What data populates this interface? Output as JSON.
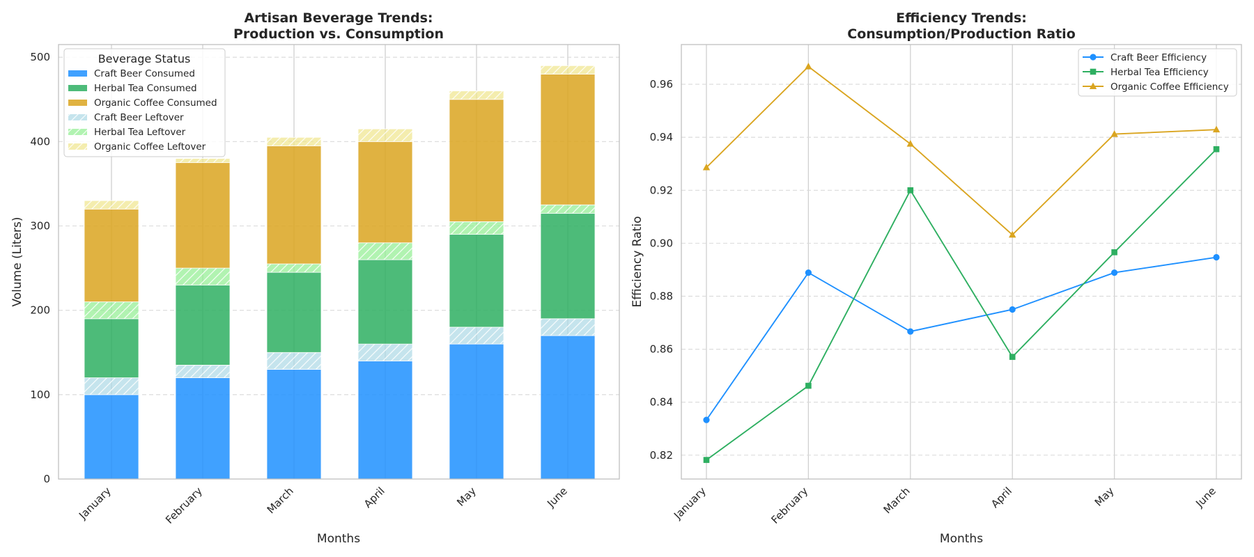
{
  "chart_data": [
    {
      "type": "bar",
      "title": "Artisan Beverage Trends:",
      "subtitle": "Production vs. Consumption",
      "xlabel": "Months",
      "ylabel": "Volume (Liters)",
      "categories": [
        "January",
        "February",
        "March",
        "April",
        "May",
        "June"
      ],
      "ylim": [
        0,
        515
      ],
      "yticks": [
        0,
        100,
        200,
        300,
        400,
        500
      ],
      "stacked": true,
      "grid": true,
      "legend": {
        "title": "Beverage Status",
        "position": "top-left"
      },
      "series": [
        {
          "name": "Craft Beer Consumed",
          "kind": "consumed",
          "color": "#1E90FF",
          "values": [
            100,
            120,
            130,
            140,
            160,
            170
          ]
        },
        {
          "name": "Craft Beer Leftover",
          "kind": "leftover",
          "color": "#ADD8E6",
          "values": [
            20,
            15,
            20,
            20,
            20,
            20
          ]
        },
        {
          "name": "Herbal Tea Consumed",
          "kind": "consumed",
          "color": "#2EAF61",
          "values": [
            70,
            95,
            95,
            100,
            110,
            125
          ]
        },
        {
          "name": "Herbal Tea Leftover",
          "kind": "leftover",
          "color": "#90EE90",
          "values": [
            20,
            20,
            10,
            20,
            15,
            10
          ]
        },
        {
          "name": "Organic Coffee Consumed",
          "kind": "consumed",
          "color": "#DAA520",
          "values": [
            110,
            125,
            140,
            120,
            145,
            155
          ]
        },
        {
          "name": "Organic Coffee Leftover",
          "kind": "leftover",
          "color": "#F0E68C",
          "values": [
            10,
            5,
            10,
            15,
            10,
            10
          ]
        }
      ],
      "legend_order": [
        "Craft Beer Consumed",
        "Herbal Tea Consumed",
        "Organic Coffee Consumed",
        "Craft Beer Leftover",
        "Herbal Tea Leftover",
        "Organic Coffee Leftover"
      ]
    },
    {
      "type": "line",
      "title": "Efficiency Trends:",
      "subtitle": "Consumption/Production Ratio",
      "xlabel": "Months",
      "ylabel": "Efficiency Ratio",
      "categories": [
        "January",
        "February",
        "March",
        "April",
        "May",
        "June"
      ],
      "ylim": [
        0.811,
        0.975
      ],
      "yticks": [
        0.82,
        0.84,
        0.86,
        0.88,
        0.9,
        0.92,
        0.94,
        0.96
      ],
      "ytick_labels": [
        "0.82",
        "0.84",
        "0.86",
        "0.88",
        "0.90",
        "0.92",
        "0.94",
        "0.96"
      ],
      "grid": true,
      "legend": {
        "position": "top-right"
      },
      "series": [
        {
          "name": "Craft Beer Efficiency",
          "color": "#1E90FF",
          "marker": "circle",
          "values": [
            0.8333,
            0.8889,
            0.8667,
            0.875,
            0.8889,
            0.8947
          ]
        },
        {
          "name": "Herbal Tea Efficiency",
          "color": "#2EAF61",
          "marker": "square",
          "values": [
            0.8182,
            0.8462,
            0.92,
            0.8571,
            0.8966,
            0.9355
          ]
        },
        {
          "name": "Organic Coffee Efficiency",
          "color": "#DAA520",
          "marker": "triangle",
          "values": [
            0.9286,
            0.9667,
            0.9375,
            0.9032,
            0.9412,
            0.9429
          ]
        }
      ]
    }
  ]
}
